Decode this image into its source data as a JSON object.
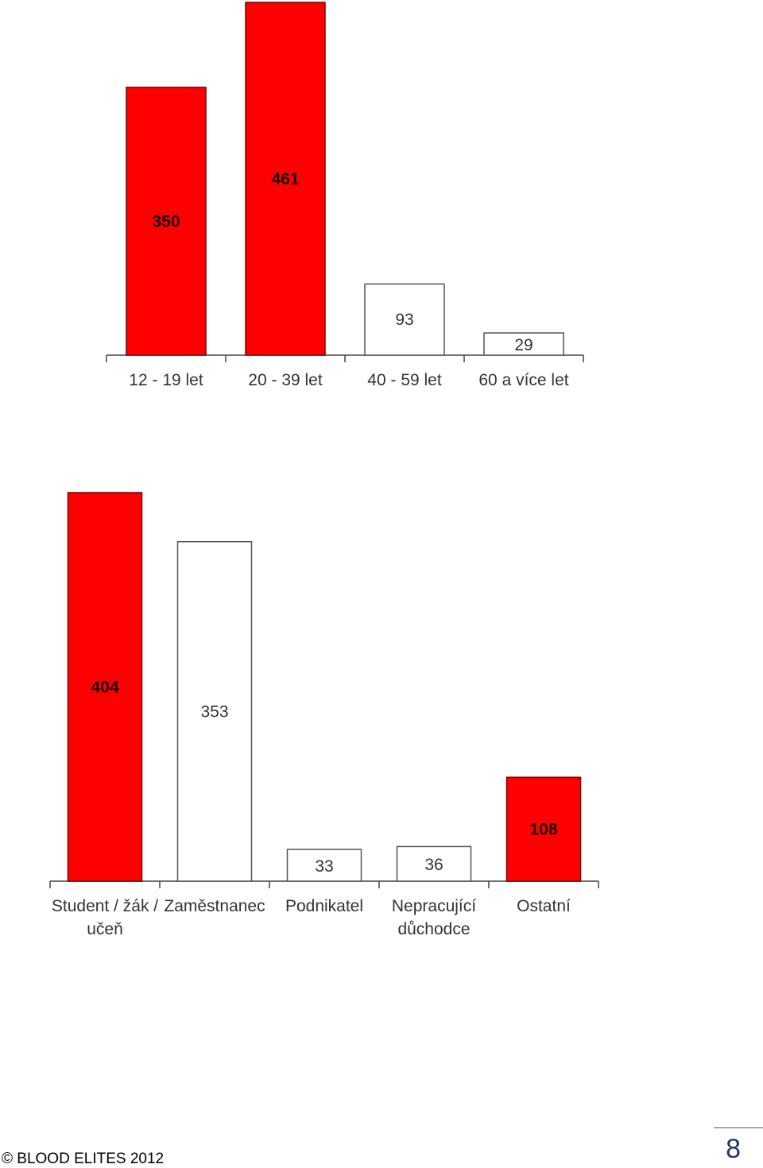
{
  "chart_data": [
    {
      "type": "bar",
      "categories": [
        "12 - 19 let",
        "20 - 39 let",
        "40 - 59 let",
        "60 a více let"
      ],
      "values": [
        350,
        461,
        93,
        29
      ],
      "colors": [
        "#ff0000",
        "#ff0000",
        "#ffffff",
        "#ffffff"
      ],
      "ylim": [
        0,
        461
      ],
      "grid": false,
      "legend": "none"
    },
    {
      "type": "bar",
      "categories": [
        "Student / žák / učeň",
        "Zaměstnanec",
        "Podnikatel",
        "Nepracující důchodce",
        "Ostatní"
      ],
      "category_lines": [
        [
          "Student / žák /",
          "učeň"
        ],
        [
          "Zaměstnanec"
        ],
        [
          "Podnikatel"
        ],
        [
          "Nepracující",
          "důchodce"
        ],
        [
          "Ostatní"
        ]
      ],
      "values": [
        404,
        353,
        33,
        36,
        108
      ],
      "colors": [
        "#ff0000",
        "#ffffff",
        "#ffffff",
        "#ffffff",
        "#ff0000"
      ],
      "ylim": [
        0,
        404
      ],
      "grid": false,
      "legend": "none"
    }
  ],
  "footer": {
    "copyright": "© BLOOD ELITES 2012",
    "page_number": "8"
  }
}
